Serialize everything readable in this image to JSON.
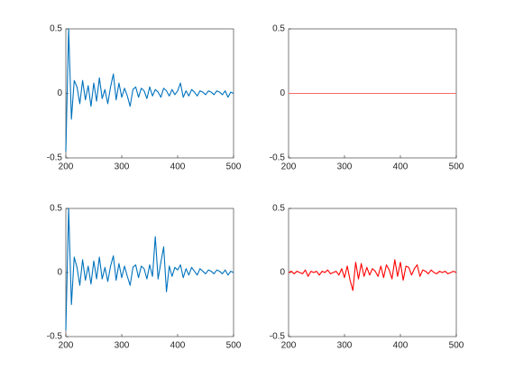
{
  "chart_data": [
    {
      "type": "line",
      "x": [
        200,
        205,
        210,
        215,
        220,
        225,
        230,
        235,
        240,
        245,
        250,
        255,
        260,
        265,
        270,
        275,
        280,
        285,
        290,
        295,
        300,
        305,
        310,
        315,
        320,
        325,
        330,
        335,
        340,
        345,
        350,
        355,
        360,
        365,
        370,
        375,
        380,
        385,
        390,
        395,
        400,
        405,
        410,
        415,
        420,
        425,
        430,
        435,
        440,
        445,
        450,
        455,
        460,
        465,
        470,
        475,
        480,
        485,
        490,
        495,
        500
      ],
      "series": [
        {
          "color": "#0072bd",
          "values": [
            -0.45,
            0.5,
            -0.2,
            0.1,
            0.05,
            -0.08,
            0.1,
            -0.05,
            0.06,
            -0.1,
            0.08,
            -0.06,
            0.12,
            -0.04,
            0.03,
            -0.08,
            0.05,
            0.15,
            -0.05,
            0.08,
            -0.03,
            0.04,
            -0.02,
            -0.1,
            0.03,
            0.05,
            -0.03,
            0.04,
            0.02,
            -0.04,
            0.05,
            -0.02,
            0.03,
            0.01,
            -0.03,
            0.04,
            0.02,
            -0.02,
            0.03,
            -0.01,
            0.02,
            0.08,
            -0.03,
            0.02,
            -0.02,
            0.03,
            0.01,
            -0.02,
            0.02,
            0.01,
            -0.01,
            0.02,
            0.01,
            -0.01,
            0.02,
            0.01,
            -0.01,
            0.02,
            -0.03,
            0.01,
            0
          ]
        }
      ],
      "xlim": [
        200,
        500
      ],
      "xticks": [
        200,
        300,
        400,
        500
      ],
      "ylim": [
        -0.5,
        0.5
      ],
      "yticks": [
        -0.5,
        0,
        0.5
      ]
    },
    {
      "type": "line",
      "x": [
        200,
        205,
        210,
        215,
        220,
        225,
        230,
        235,
        240,
        245,
        250,
        255,
        260,
        265,
        270,
        275,
        280,
        285,
        290,
        295,
        300,
        305,
        310,
        315,
        320,
        325,
        330,
        335,
        340,
        345,
        350,
        355,
        360,
        365,
        370,
        375,
        380,
        385,
        390,
        395,
        400,
        405,
        410,
        415,
        420,
        425,
        430,
        435,
        440,
        445,
        450,
        455,
        460,
        465,
        470,
        475,
        480,
        485,
        490,
        495,
        500
      ],
      "series": [
        {
          "color": "#f26b6b",
          "values": [
            0,
            0,
            0,
            0,
            0,
            0,
            0,
            0,
            0,
            0,
            0,
            0,
            0,
            0,
            0,
            0,
            0,
            0,
            0,
            0,
            0,
            0,
            0,
            0,
            0,
            0,
            0,
            0,
            0,
            0,
            0,
            0,
            0,
            0,
            0,
            0,
            0,
            0,
            0,
            0,
            0,
            0,
            0,
            0,
            0,
            0,
            0,
            0,
            0,
            0,
            0,
            0,
            0,
            0,
            0,
            0,
            0,
            0,
            0,
            0,
            0
          ]
        }
      ],
      "xlim": [
        200,
        500
      ],
      "xticks": [
        200,
        300,
        400,
        500
      ],
      "ylim": [
        -0.5,
        0.5
      ],
      "yticks": [
        -0.5,
        0,
        0.5
      ]
    },
    {
      "type": "line",
      "x": [
        200,
        205,
        210,
        215,
        220,
        225,
        230,
        235,
        240,
        245,
        250,
        255,
        260,
        265,
        270,
        275,
        280,
        285,
        290,
        295,
        300,
        305,
        310,
        315,
        320,
        325,
        330,
        335,
        340,
        345,
        350,
        355,
        360,
        365,
        370,
        375,
        380,
        385,
        390,
        395,
        400,
        405,
        410,
        415,
        420,
        425,
        430,
        435,
        440,
        445,
        450,
        455,
        460,
        465,
        470,
        475,
        480,
        485,
        490,
        495,
        500
      ],
      "series": [
        {
          "color": "#0072bd",
          "values": [
            -0.45,
            0.5,
            -0.25,
            0.12,
            0.04,
            -0.1,
            0.1,
            -0.06,
            0.05,
            -0.09,
            0.09,
            -0.05,
            0.12,
            -0.05,
            0.04,
            -0.07,
            0.05,
            0.13,
            -0.06,
            0.07,
            -0.04,
            0.05,
            -0.03,
            -0.1,
            0.04,
            0.06,
            -0.04,
            0.05,
            0.03,
            -0.05,
            0.06,
            -0.03,
            0.28,
            -0.05,
            0.08,
            0.2,
            -0.15,
            0.05,
            -0.03,
            0.04,
            0.02,
            0.06,
            -0.04,
            0.03,
            -0.02,
            0.04,
            0.01,
            -0.02,
            0.03,
            0.01,
            -0.01,
            0.02,
            0.01,
            -0.01,
            0.02,
            0.01,
            -0.01,
            0.02,
            -0.02,
            0.01,
            0
          ]
        }
      ],
      "xlim": [
        200,
        500
      ],
      "xticks": [
        200,
        300,
        400,
        500
      ],
      "ylim": [
        -0.5,
        0.5
      ],
      "yticks": [
        -0.5,
        0,
        0.5
      ]
    },
    {
      "type": "line",
      "x": [
        200,
        205,
        210,
        215,
        220,
        225,
        230,
        235,
        240,
        245,
        250,
        255,
        260,
        265,
        270,
        275,
        280,
        285,
        290,
        295,
        300,
        305,
        310,
        315,
        320,
        325,
        330,
        335,
        340,
        345,
        350,
        355,
        360,
        365,
        370,
        375,
        380,
        385,
        390,
        395,
        400,
        405,
        410,
        415,
        420,
        425,
        430,
        435,
        440,
        445,
        450,
        455,
        460,
        465,
        470,
        475,
        480,
        485,
        490,
        495,
        500
      ],
      "series": [
        {
          "color": "#ff0000",
          "values": [
            0,
            0.01,
            -0.01,
            0.01,
            0,
            -0.01,
            0.02,
            -0.03,
            0.01,
            0,
            0.01,
            -0.02,
            0.01,
            0,
            0.02,
            -0.01,
            0,
            0.01,
            -0.02,
            0.03,
            -0.04,
            0.05,
            -0.06,
            -0.14,
            0.08,
            -0.05,
            0.07,
            -0.03,
            0.04,
            -0.02,
            0.03,
            0.01,
            -0.03,
            0.05,
            -0.04,
            0.06,
            0.02,
            -0.05,
            0.1,
            -0.03,
            0.08,
            -0.06,
            0.05,
            0.04,
            -0.02,
            0.03,
            0.06,
            -0.03,
            0.02,
            0.01,
            -0.01,
            0.02,
            0,
            -0.01,
            0.01,
            0,
            0.01,
            -0.01,
            0,
            0.01,
            0
          ]
        }
      ],
      "xlim": [
        200,
        500
      ],
      "xticks": [
        200,
        300,
        400,
        500
      ],
      "ylim": [
        -0.5,
        0.5
      ],
      "yticks": [
        -0.5,
        0,
        0.5
      ]
    }
  ]
}
